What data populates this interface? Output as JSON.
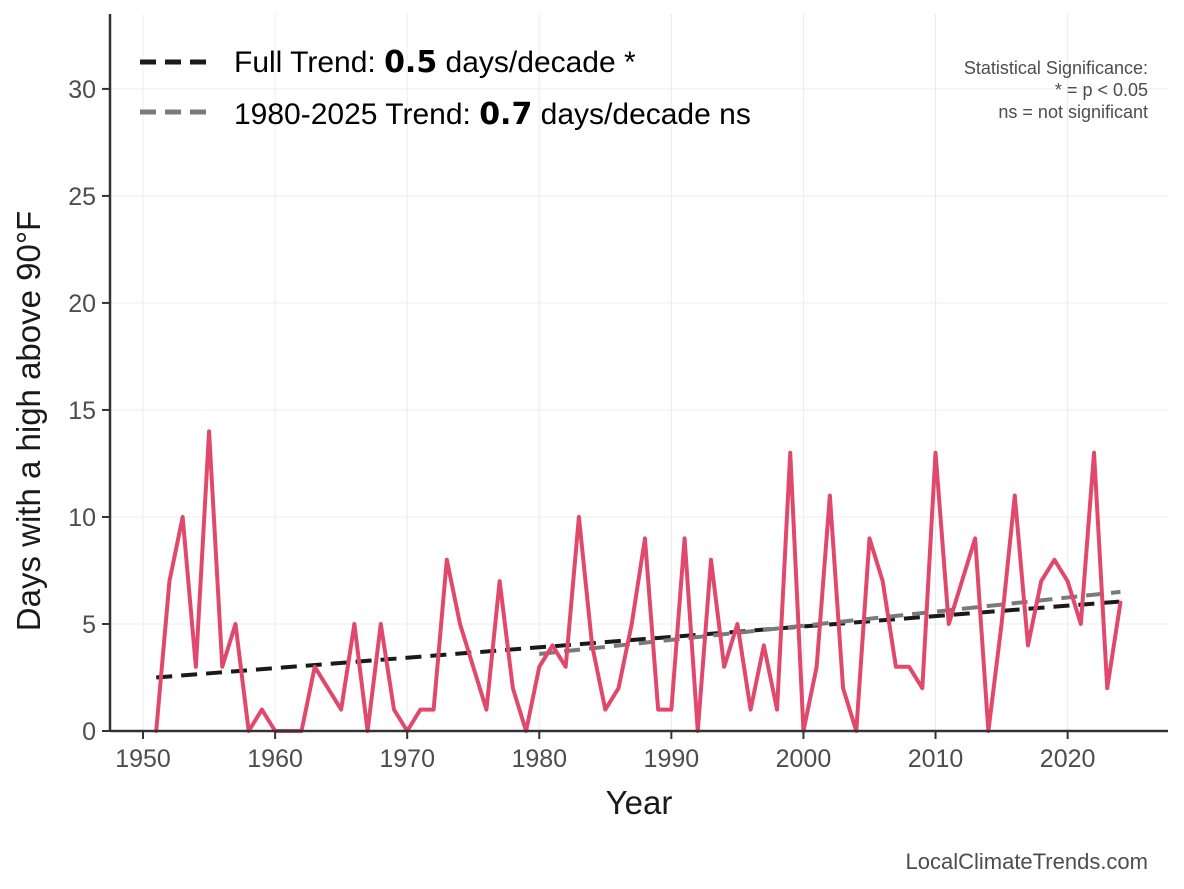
{
  "chart_data": {
    "type": "line",
    "xlabel": "Year",
    "ylabel": "Days with a high above 90°F",
    "xlim": [
      1947.5,
      2027.6
    ],
    "ylim": [
      0,
      33.5
    ],
    "x_ticks": [
      1950,
      1960,
      1970,
      1980,
      1990,
      2000,
      2010,
      2020
    ],
    "y_ticks": [
      0,
      5,
      10,
      15,
      20,
      25,
      30
    ],
    "grid": true,
    "legend_position": "top-left",
    "series": [
      {
        "color": "#e0496b",
        "x": [
          1951,
          1952,
          1953,
          1954,
          1955,
          1956,
          1957,
          1958,
          1959,
          1960,
          1961,
          1962,
          1963,
          1964,
          1965,
          1966,
          1967,
          1968,
          1969,
          1970,
          1971,
          1972,
          1973,
          1974,
          1975,
          1976,
          1977,
          1978,
          1979,
          1980,
          1981,
          1982,
          1983,
          1984,
          1985,
          1986,
          1987,
          1988,
          1989,
          1990,
          1991,
          1992,
          1993,
          1994,
          1995,
          1996,
          1997,
          1998,
          1999,
          2000,
          2001,
          2002,
          2003,
          2004,
          2005,
          2006,
          2007,
          2008,
          2009,
          2010,
          2011,
          2012,
          2013,
          2014,
          2015,
          2016,
          2017,
          2018,
          2019,
          2020,
          2021,
          2022,
          2023,
          2024
        ],
        "values": [
          0,
          7,
          10,
          3,
          14,
          3,
          5,
          0,
          1,
          0,
          0,
          0,
          3,
          2,
          1,
          5,
          0,
          5,
          1,
          0,
          1,
          1,
          8,
          5,
          3,
          1,
          7,
          2,
          0,
          3,
          4,
          3,
          10,
          4,
          1,
          2,
          5,
          9,
          1,
          1,
          9,
          0,
          8,
          3,
          5,
          1,
          4,
          1,
          13,
          0,
          3,
          11,
          2,
          0,
          9,
          7,
          3,
          3,
          2,
          13,
          5,
          7,
          9,
          0,
          5,
          11,
          4,
          7,
          8,
          7,
          5,
          13,
          2,
          6
        ]
      }
    ],
    "trends": [
      {
        "name": "Full Trend",
        "value_label": "0.5",
        "suffix": "days/decade *",
        "color": "#1a1a1a",
        "x": [
          1951,
          2024
        ],
        "y": [
          2.5,
          6.05
        ]
      },
      {
        "name": "1980-2025 Trend",
        "value_label": "0.7",
        "suffix": "days/decade ns",
        "color": "#7a7a7a",
        "x": [
          1980,
          2024
        ],
        "y": [
          3.6,
          6.5
        ]
      }
    ]
  },
  "legend": {
    "full_prefix": "Full Trend: ",
    "full_value": "0.5",
    "full_suffix": " days/decade *",
    "recent_prefix": "1980-2025 Trend: ",
    "recent_value": "0.7",
    "recent_suffix": " days/decade ns"
  },
  "significance_note": {
    "line1": "Statistical Significance:",
    "line2": "* = p < 0.05",
    "line3": "ns = not significant"
  },
  "source": "LocalClimateTrends.com"
}
